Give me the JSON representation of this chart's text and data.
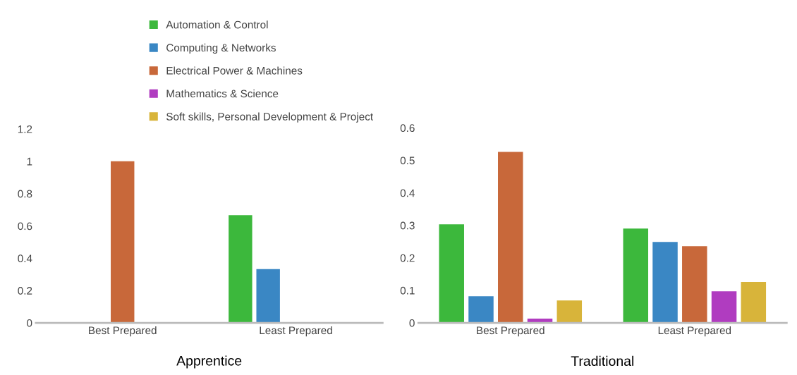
{
  "chart_data": [
    {
      "type": "bar",
      "title": "Apprentice",
      "categories": [
        "Best Prepared",
        "Least Prepared"
      ],
      "ylim": [
        0,
        1.2
      ],
      "yticks": [
        0,
        0.2,
        0.4,
        0.6,
        0.8,
        1,
        1.2
      ],
      "grid": false,
      "legend": "top",
      "series": [
        {
          "name": "Automation & Control",
          "color": "#3cb83c",
          "values": [
            0,
            0.667
          ]
        },
        {
          "name": "Computing & Networks",
          "color": "#3a87c4",
          "values": [
            0,
            0.333
          ]
        },
        {
          "name": "Electrical Power & Machines",
          "color": "#c8683a",
          "values": [
            1,
            0
          ]
        },
        {
          "name": "Mathematics & Science",
          "color": "#b03cc0",
          "values": [
            0,
            0
          ]
        },
        {
          "name": "Soft skills, Personal Development & Project",
          "color": "#d8b43a",
          "values": [
            0,
            0
          ]
        }
      ]
    },
    {
      "type": "bar",
      "title": "Traditional",
      "categories": [
        "Best Prepared",
        "Least Prepared"
      ],
      "ylim": [
        0,
        0.6
      ],
      "yticks": [
        0,
        0.1,
        0.2,
        0.3,
        0.4,
        0.5,
        0.6
      ],
      "grid": false,
      "legend": false,
      "series": [
        {
          "color": "#3cb83c",
          "values": [
            0.303,
            0.29
          ]
        },
        {
          "color": "#3a87c4",
          "values": [
            0.082,
            0.249
          ]
        },
        {
          "color": "#c8683a",
          "values": [
            0.526,
            0.236
          ]
        },
        {
          "color": "#b03cc0",
          "values": [
            0.013,
            0.097
          ]
        },
        {
          "color": "#d8b43a",
          "values": [
            0.069,
            0.126
          ]
        }
      ]
    }
  ]
}
